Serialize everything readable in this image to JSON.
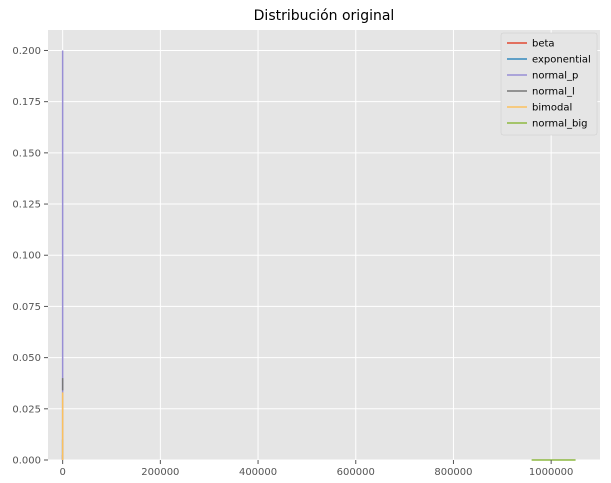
{
  "chart_data": {
    "type": "line",
    "title": "Distribución original",
    "xlabel": "",
    "ylabel": "",
    "xlim": [
      -30000,
      1100000
    ],
    "ylim": [
      0,
      0.21
    ],
    "xticks": [
      0,
      200000,
      400000,
      600000,
      800000,
      1000000
    ],
    "xtick_labels": [
      "0",
      "200000",
      "400000",
      "600000",
      "800000",
      "1000000"
    ],
    "yticks": [
      0.0,
      0.025,
      0.05,
      0.075,
      0.1,
      0.125,
      0.15,
      0.175,
      0.2
    ],
    "ytick_labels": [
      "0.000",
      "0.025",
      "0.050",
      "0.075",
      "0.100",
      "0.125",
      "0.150",
      "0.175",
      "0.200"
    ],
    "grid": true,
    "legend_position": "top-right",
    "series": [
      {
        "name": "beta",
        "color": "#E24A33",
        "x": [
          0,
          0,
          0
        ],
        "y": [
          0,
          0.0025,
          0
        ]
      },
      {
        "name": "exponential",
        "color": "#348ABD",
        "x": [
          0,
          0,
          0
        ],
        "y": [
          0,
          0.01,
          0
        ]
      },
      {
        "name": "normal_p",
        "color": "#988ED5",
        "x": [
          0,
          0,
          0
        ],
        "y": [
          0,
          0.2,
          0
        ]
      },
      {
        "name": "normal_l",
        "color": "#777777",
        "x": [
          0,
          0,
          0
        ],
        "y": [
          0.034,
          0.04,
          0.034
        ]
      },
      {
        "name": "bimodal",
        "color": "#FBC15E",
        "x": [
          0,
          0,
          0
        ],
        "y": [
          0,
          0.033,
          0
        ]
      },
      {
        "name": "normal_big",
        "color": "#8EBA42",
        "x": [
          960000,
          1000000,
          1050000
        ],
        "y": [
          0,
          1e-05,
          0
        ]
      }
    ]
  }
}
